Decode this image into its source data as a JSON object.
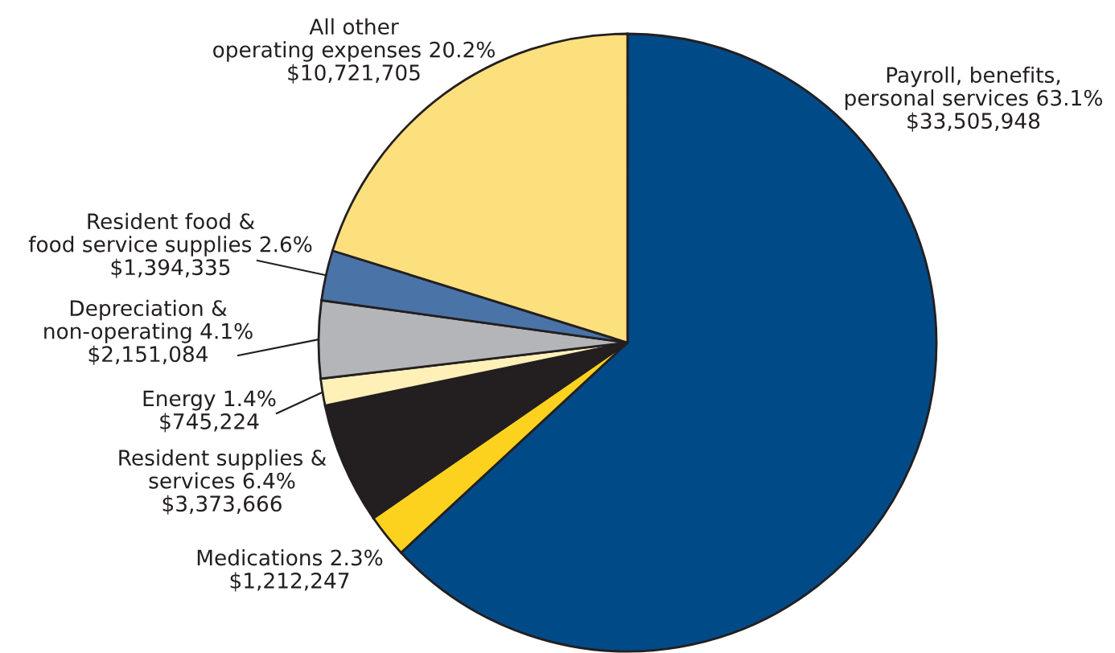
{
  "chart_data": {
    "type": "pie",
    "categories": [
      "Payroll, benefits,\npersonal services",
      "Medications",
      "Resident supplies &\nservices",
      "Energy",
      "Depreciation &\nnon-operating",
      "Resident food &\nfood service supplies",
      "All other\noperating expenses"
    ],
    "values": [
      33505948,
      1212247,
      3373666,
      745224,
      2151084,
      1394335,
      10721705
    ],
    "value_labels": [
      "63.1%\n$33,505,948",
      "2.3%\n$1,212,247",
      "6.4%\n$3,373,666",
      "1.4%\n$745,224",
      "4.1%\n$2,151,084",
      "2.6%\n$1,394,335",
      "20.2%\n$10,721,705"
    ],
    "colors": [
      "#004a87",
      "#fdd21f",
      "#231f20",
      "#fff0b8",
      "#b3b5b8",
      "#4a74a8",
      "#fde07e"
    ]
  }
}
